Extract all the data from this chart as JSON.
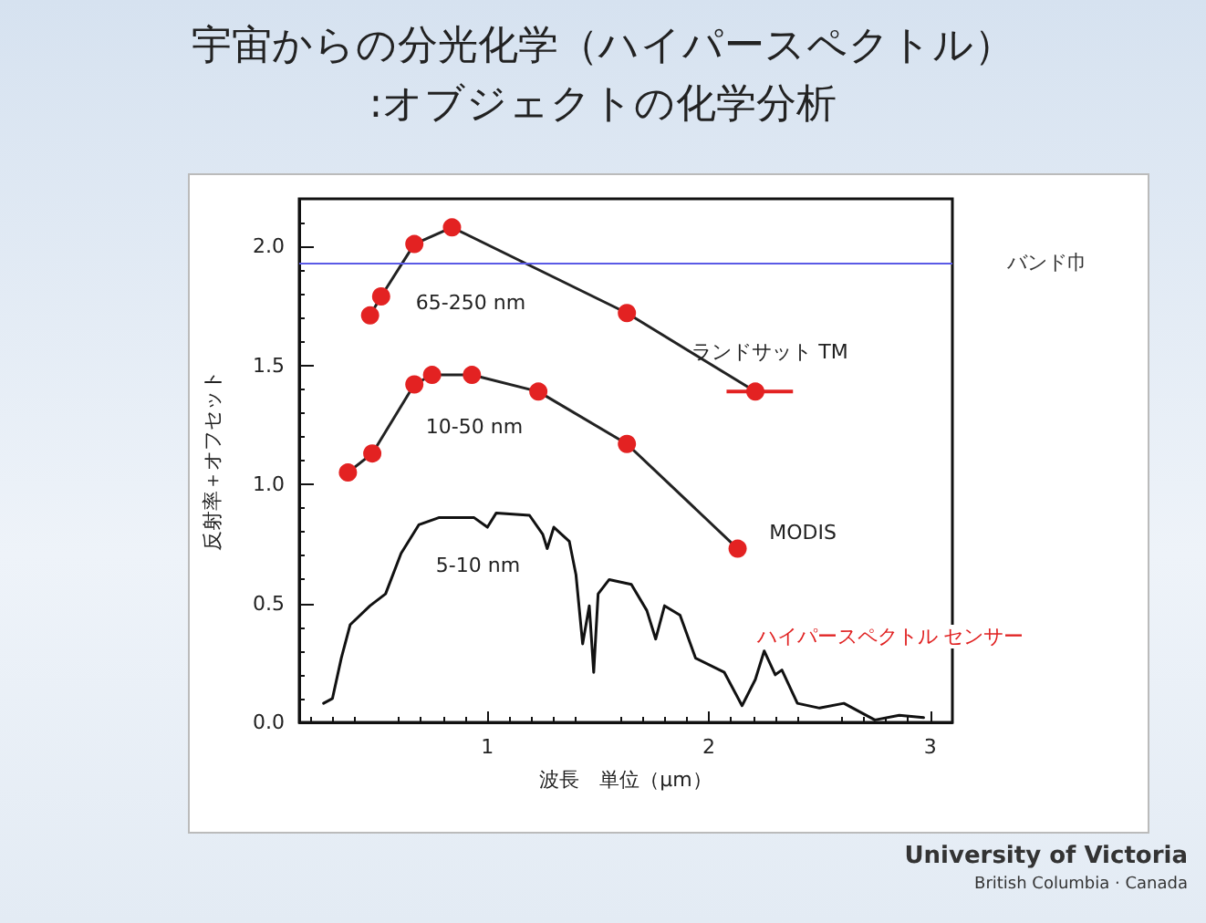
{
  "chart_data": {
    "type": "line",
    "title": "宇宙からの分光化学（ハイパースペクトル）",
    "subtitle": ":オブジェクトの化学分析",
    "xlabel": "波長　単位（μm）",
    "ylabel": "反射率＋オフセット",
    "xlim": [
      0.15,
      3.1
    ],
    "xticks": [
      1,
      2,
      3
    ],
    "ylim": [
      0,
      2.2
    ],
    "yticks": [
      {
        "value": 0,
        "label": "0.0"
      },
      {
        "value": 0.5,
        "label": "0.5"
      },
      {
        "value": 1,
        "label": "1.0"
      },
      {
        "value": 1.5,
        "label": "1.5"
      },
      {
        "value": 2,
        "label": "2.0"
      }
    ],
    "grid": false,
    "marker": "circle",
    "series": [
      {
        "name": "ランドサット TM",
        "color": "#e32222",
        "x": [
          0.47,
          0.52,
          0.67,
          0.84,
          1.63,
          2.21
        ],
        "values": [
          1.71,
          1.79,
          2.01,
          2.08,
          1.72,
          1.39
        ],
        "xerrors": [
          null,
          null,
          null,
          null,
          null,
          [
            2.08,
            2.38
          ]
        ]
      },
      {
        "name": "MODIS",
        "color": "#e32222",
        "x": [
          0.37,
          0.48,
          0.67,
          0.75,
          0.93,
          1.23,
          1.63,
          2.13
        ],
        "values": [
          1.05,
          1.13,
          1.42,
          1.46,
          1.46,
          1.39,
          1.17,
          0.73
        ]
      },
      {
        "color": "#111111",
        "marker": "none",
        "x": [
          0.26,
          0.3,
          0.34,
          0.38,
          0.47,
          0.54,
          0.61,
          0.69,
          0.78,
          0.94,
          1.0,
          1.04,
          1.19,
          1.25,
          1.27,
          1.3,
          1.37,
          1.4,
          1.43,
          1.46,
          1.48,
          1.5,
          1.55,
          1.65,
          1.72,
          1.76,
          1.8,
          1.87,
          1.94,
          2.07,
          2.15,
          2.21,
          2.25,
          2.3,
          2.33,
          2.4,
          2.5,
          2.61,
          2.75,
          2.86,
          2.97
        ],
        "values": [
          0.08,
          0.1,
          0.27,
          0.41,
          0.49,
          0.54,
          0.71,
          0.83,
          0.86,
          0.86,
          0.82,
          0.88,
          0.87,
          0.79,
          0.73,
          0.82,
          0.76,
          0.62,
          0.33,
          0.49,
          0.21,
          0.54,
          0.6,
          0.58,
          0.47,
          0.35,
          0.49,
          0.45,
          0.27,
          0.21,
          0.07,
          0.18,
          0.3,
          0.2,
          0.22,
          0.08,
          0.06,
          0.08,
          0.01,
          0.03,
          0.02
        ]
      }
    ],
    "ref_lines": [
      {
        "axis": "y",
        "value": 1.93,
        "label": "バンド巾",
        "color": "#5a5ae6"
      }
    ],
    "annotations": [
      "65-250 nm",
      "10-50 nm",
      "5-10 nm",
      "ハイパースペクトル センサー",
      "University of Victoria",
      "British Columbia · Canada"
    ]
  }
}
